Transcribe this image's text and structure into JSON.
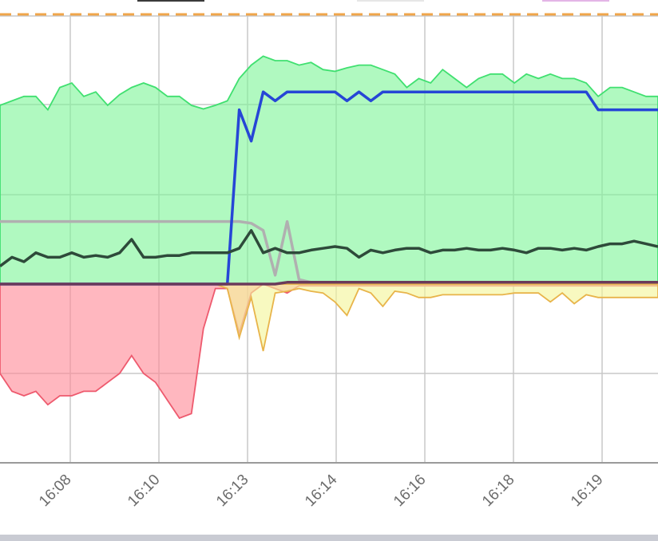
{
  "chart_data": {
    "type": "area",
    "x_tick_labels": [
      "16:08",
      "16:10",
      "16:13",
      "16:14",
      "16:16",
      "16:18",
      "16:19"
    ],
    "grid": true,
    "legend": "top (partially visible, swatches only)",
    "legend_swatch_colors": [
      "#3a3a3a",
      "#e6e6e6",
      "#e3b5e6"
    ],
    "threshold_line": {
      "color": "#f0a54a",
      "style": "dashed"
    },
    "ylim": [
      -2,
      3
    ],
    "series": [
      {
        "color": "#40e070",
        "fill": "#7ff59a",
        "values": [
          2.0,
          2.05,
          2.1,
          2.1,
          1.95,
          2.2,
          2.25,
          2.1,
          2.15,
          2.0,
          2.12,
          2.2,
          2.25,
          2.2,
          2.1,
          2.1,
          2.0,
          1.96,
          2.0,
          2.05,
          2.3,
          2.45,
          2.55,
          2.5,
          2.5,
          2.45,
          2.48,
          2.4,
          2.38,
          2.42,
          2.45,
          2.45,
          2.4,
          2.35,
          2.2,
          2.3,
          2.25,
          2.4,
          2.3,
          2.2,
          2.3,
          2.35,
          2.35,
          2.25,
          2.35,
          2.3,
          2.35,
          2.3,
          2.3,
          2.25,
          2.1,
          2.2,
          2.2,
          2.15,
          2.1,
          2.1
        ]
      },
      {
        "color": "#ee5a6e",
        "fill": "#ff8a98",
        "values": [
          -1.0,
          -1.2,
          -1.25,
          -1.2,
          -1.35,
          -1.25,
          -1.25,
          -1.2,
          -1.2,
          -1.1,
          -1.0,
          -0.8,
          -1.0,
          -1.1,
          -1.3,
          -1.5,
          -1.45,
          -0.5,
          -0.05,
          -0.05,
          -0.55,
          -0.1,
          0.0,
          -0.05,
          -0.1,
          -0.02,
          -0.02,
          -0.02,
          -0.02,
          -0.02,
          -0.02,
          -0.02,
          -0.02,
          -0.02,
          -0.02,
          -0.02,
          -0.02,
          -0.02,
          -0.02,
          -0.02,
          -0.02,
          -0.02,
          -0.02,
          -0.02,
          -0.02,
          -0.02,
          -0.02,
          -0.02,
          -0.02,
          -0.02,
          -0.02,
          -0.02,
          -0.02,
          -0.02,
          -0.02,
          -0.02
        ]
      },
      {
        "color": "#e8b44a",
        "fill": "#f4f59a",
        "values": [
          0,
          0,
          0,
          0,
          0,
          0,
          0,
          0,
          0,
          0,
          0,
          0,
          0,
          0,
          0,
          0,
          0,
          0,
          0,
          -0.05,
          -0.6,
          -0.15,
          -0.75,
          -0.1,
          -0.08,
          -0.05,
          -0.08,
          -0.1,
          -0.2,
          -0.35,
          -0.05,
          -0.1,
          -0.25,
          -0.08,
          -0.1,
          -0.15,
          -0.15,
          -0.12,
          -0.12,
          -0.12,
          -0.12,
          -0.12,
          -0.12,
          -0.1,
          -0.1,
          -0.1,
          -0.2,
          -0.1,
          -0.22,
          -0.12,
          -0.15,
          -0.15,
          -0.15,
          -0.15,
          -0.15,
          -0.15
        ]
      },
      {
        "color": "#b0b0b0",
        "values": [
          0.7,
          0.7,
          0.7,
          0.7,
          0.7,
          0.7,
          0.7,
          0.7,
          0.7,
          0.7,
          0.7,
          0.7,
          0.7,
          0.7,
          0.7,
          0.7,
          0.7,
          0.7,
          0.7,
          0.7,
          0.7,
          0.68,
          0.6,
          0.1,
          0.7,
          0.05,
          0.02,
          0.02,
          0.02,
          0.02,
          0.02,
          0.02,
          0.02,
          0.02,
          0.02,
          0.02,
          0.02,
          0.02,
          0.02,
          0.02,
          0.02,
          0.02,
          0.02,
          0.02,
          0.02,
          0.02,
          0.02,
          0.02,
          0.02,
          0.02,
          0.02,
          0.02,
          0.02,
          0.02,
          0.02,
          0.02
        ]
      },
      {
        "color": "#2646d6",
        "values": [
          0,
          0,
          0,
          0,
          0,
          0,
          0,
          0,
          0,
          0,
          0,
          0,
          0,
          0,
          0,
          0,
          0,
          0,
          0,
          0,
          1.95,
          1.6,
          2.15,
          2.05,
          2.15,
          2.15,
          2.15,
          2.15,
          2.15,
          2.05,
          2.15,
          2.05,
          2.15,
          2.15,
          2.15,
          2.15,
          2.15,
          2.15,
          2.15,
          2.15,
          2.15,
          2.15,
          2.15,
          2.15,
          2.15,
          2.15,
          2.15,
          2.15,
          2.15,
          2.15,
          1.95,
          1.95,
          1.95,
          1.95,
          1.95,
          1.95
        ]
      },
      {
        "color": "#2e4a3a",
        "values": [
          0.2,
          0.3,
          0.25,
          0.35,
          0.3,
          0.3,
          0.35,
          0.3,
          0.32,
          0.3,
          0.35,
          0.5,
          0.3,
          0.3,
          0.32,
          0.32,
          0.35,
          0.35,
          0.35,
          0.35,
          0.4,
          0.6,
          0.35,
          0.4,
          0.35,
          0.35,
          0.38,
          0.4,
          0.42,
          0.4,
          0.3,
          0.38,
          0.35,
          0.38,
          0.4,
          0.4,
          0.35,
          0.38,
          0.38,
          0.4,
          0.38,
          0.38,
          0.4,
          0.38,
          0.35,
          0.4,
          0.4,
          0.38,
          0.4,
          0.38,
          0.42,
          0.45,
          0.45,
          0.48,
          0.45,
          0.42
        ]
      },
      {
        "color": "#6b3a5a",
        "values": [
          0,
          0,
          0,
          0,
          0,
          0,
          0,
          0,
          0,
          0,
          0,
          0,
          0,
          0,
          0,
          0,
          0,
          0,
          0,
          0,
          0,
          0,
          0,
          0,
          0.02,
          0.02,
          0.02,
          0.02,
          0.02,
          0.02,
          0.02,
          0.02,
          0.02,
          0.02,
          0.02,
          0.02,
          0.02,
          0.02,
          0.02,
          0.02,
          0.02,
          0.02,
          0.02,
          0.02,
          0.02,
          0.02,
          0.02,
          0.02,
          0.02,
          0.02,
          0.02,
          0.02,
          0.02,
          0.02,
          0.02,
          0.02
        ]
      }
    ]
  }
}
